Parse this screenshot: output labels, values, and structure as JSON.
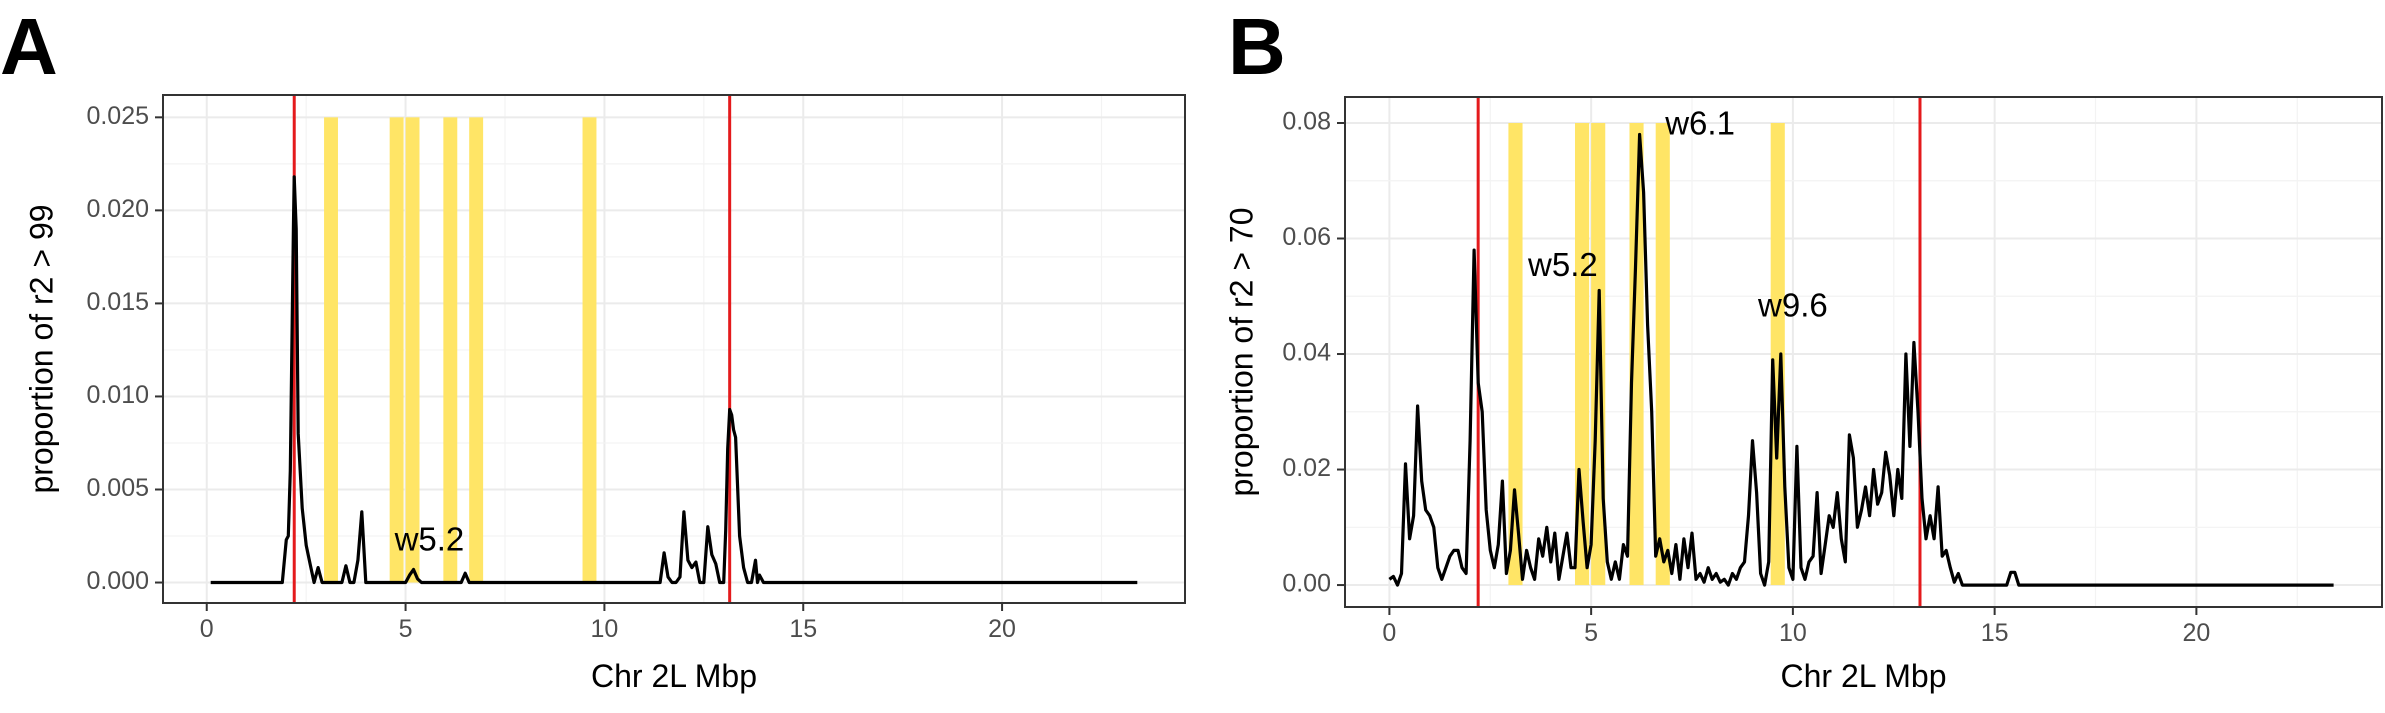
{
  "chart_data": [
    {
      "type": "line",
      "panel_label": "A",
      "xlabel": "Chr 2L Mbp",
      "ylabel": "proportion of r2 > 99",
      "xlim": [
        -1.1,
        24.6
      ],
      "ylim": [
        -0.0011,
        0.0262
      ],
      "xticks": [
        0,
        5,
        10,
        15,
        20
      ],
      "yticks": [
        0.0,
        0.005,
        0.01,
        0.015,
        0.02,
        0.025
      ],
      "ytick_labels": [
        "0.000",
        "0.005",
        "0.010",
        "0.015",
        "0.020",
        "0.025"
      ],
      "grid": true,
      "vlines": {
        "color": "#e41a1c",
        "x": [
          2.2,
          13.15
        ]
      },
      "highlight_bands": {
        "color": "#ffe566",
        "y_range": [
          0,
          0.025
        ],
        "x_ranges": [
          [
            2.95,
            3.3
          ],
          [
            4.6,
            4.95
          ],
          [
            5.0,
            5.35
          ],
          [
            5.95,
            6.3
          ],
          [
            6.6,
            6.95
          ],
          [
            9.45,
            9.8
          ]
        ]
      },
      "annotations": [
        {
          "text": "w5.2",
          "x": 5.6,
          "y": 0.0022
        }
      ],
      "series": [
        {
          "x": [
            0.1,
            1.9,
            2.0,
            2.05,
            2.1,
            2.15,
            2.18,
            2.2,
            2.25,
            2.3,
            2.4,
            2.5,
            2.6,
            2.7,
            2.8,
            2.9,
            3.0,
            3.2,
            3.4,
            3.5,
            3.6,
            3.7,
            3.8,
            3.9,
            4.0,
            4.1,
            4.5,
            5.0,
            5.1,
            5.2,
            5.3,
            5.4,
            6.2,
            6.4,
            6.5,
            6.6,
            6.8,
            11.4,
            11.5,
            11.6,
            11.7,
            11.8,
            11.9,
            12.0,
            12.1,
            12.2,
            12.3,
            12.4,
            12.5,
            12.6,
            12.7,
            12.8,
            12.9,
            12.95,
            13.0,
            13.05,
            13.1,
            13.15,
            13.2,
            13.25,
            13.3,
            13.4,
            13.5,
            13.6,
            13.7,
            13.8,
            13.85,
            13.9,
            14.0,
            23.4
          ],
          "y": [
            0.0,
            0.0,
            0.0023,
            0.0025,
            0.006,
            0.014,
            0.019,
            0.0218,
            0.019,
            0.008,
            0.004,
            0.002,
            0.001,
            0.0,
            0.0008,
            0.0,
            0.0,
            0.0,
            0.0,
            0.0009,
            0.0,
            0.0,
            0.0012,
            0.0038,
            0.0,
            0.0,
            0.0,
            0.0,
            0.0004,
            0.0007,
            0.0002,
            0.0,
            0.0,
            0.0,
            0.0005,
            0.0,
            0.0,
            0.0,
            0.0016,
            0.0003,
            0.0,
            0.0,
            0.0003,
            0.0038,
            0.0012,
            0.0008,
            0.0011,
            0.0,
            0.0,
            0.003,
            0.0015,
            0.001,
            0.0,
            0.0,
            0.0,
            0.0028,
            0.0072,
            0.0093,
            0.009,
            0.0082,
            0.0078,
            0.0025,
            0.0008,
            0.0,
            0.0,
            0.0012,
            0.0,
            0.0004,
            0.0,
            0.0
          ]
        }
      ]
    },
    {
      "type": "line",
      "panel_label": "B",
      "xlabel": "Chr 2L Mbp",
      "ylabel": "proportion of r2 > 70",
      "xlim": [
        -1.1,
        24.6
      ],
      "ylim": [
        -0.0038,
        0.0845
      ],
      "xticks": [
        0,
        5,
        10,
        15,
        20
      ],
      "yticks": [
        0.0,
        0.02,
        0.04,
        0.06,
        0.08
      ],
      "ytick_labels": [
        "0.00",
        "0.02",
        "0.04",
        "0.06",
        "0.08"
      ],
      "grid": true,
      "vlines": {
        "color": "#e41a1c",
        "x": [
          2.2,
          13.15
        ]
      },
      "highlight_bands": {
        "color": "#ffe566",
        "y_range": [
          0,
          0.08
        ],
        "x_ranges": [
          [
            2.95,
            3.3
          ],
          [
            4.6,
            4.95
          ],
          [
            5.0,
            5.35
          ],
          [
            5.95,
            6.3
          ],
          [
            6.6,
            6.95
          ],
          [
            9.45,
            9.8
          ]
        ]
      },
      "annotations": [
        {
          "text": "w5.2",
          "x": 4.3,
          "y": 0.055
        },
        {
          "text": "w6.1",
          "x": 7.7,
          "y": 0.0795
        },
        {
          "text": "w9.6",
          "x": 10.0,
          "y": 0.048
        }
      ],
      "series": [
        {
          "x": [
            0.0,
            0.1,
            0.2,
            0.3,
            0.4,
            0.5,
            0.6,
            0.7,
            0.8,
            0.9,
            1.0,
            1.1,
            1.2,
            1.3,
            1.4,
            1.5,
            1.6,
            1.7,
            1.8,
            1.9,
            2.0,
            2.1,
            2.2,
            2.3,
            2.4,
            2.5,
            2.6,
            2.7,
            2.8,
            2.9,
            3.0,
            3.1,
            3.2,
            3.3,
            3.4,
            3.5,
            3.6,
            3.7,
            3.8,
            3.9,
            4.0,
            4.1,
            4.2,
            4.3,
            4.4,
            4.5,
            4.6,
            4.7,
            4.8,
            4.9,
            5.0,
            5.1,
            5.2,
            5.3,
            5.4,
            5.5,
            5.6,
            5.7,
            5.8,
            5.9,
            6.0,
            6.1,
            6.2,
            6.3,
            6.4,
            6.5,
            6.6,
            6.7,
            6.8,
            6.9,
            7.0,
            7.1,
            7.2,
            7.3,
            7.4,
            7.5,
            7.6,
            7.7,
            7.8,
            7.9,
            8.0,
            8.1,
            8.2,
            8.3,
            8.4,
            8.5,
            8.6,
            8.7,
            8.8,
            8.9,
            9.0,
            9.1,
            9.2,
            9.3,
            9.4,
            9.5,
            9.6,
            9.7,
            9.8,
            9.9,
            10.0,
            10.1,
            10.2,
            10.3,
            10.4,
            10.5,
            10.6,
            10.7,
            10.8,
            10.9,
            11.0,
            11.1,
            11.2,
            11.3,
            11.4,
            11.5,
            11.6,
            11.7,
            11.8,
            11.9,
            12.0,
            12.1,
            12.2,
            12.3,
            12.4,
            12.5,
            12.6,
            12.7,
            12.8,
            12.9,
            13.0,
            13.1,
            13.2,
            13.3,
            13.4,
            13.5,
            13.6,
            13.7,
            13.8,
            13.9,
            14.0,
            14.1,
            14.2,
            14.3,
            14.4,
            14.8,
            15.0,
            15.2,
            15.3,
            15.4,
            15.5,
            15.6,
            16.0,
            23.4
          ],
          "y": [
            0.001,
            0.0015,
            0.0,
            0.002,
            0.021,
            0.008,
            0.012,
            0.031,
            0.018,
            0.013,
            0.012,
            0.01,
            0.003,
            0.001,
            0.003,
            0.005,
            0.006,
            0.006,
            0.003,
            0.002,
            0.025,
            0.058,
            0.035,
            0.03,
            0.013,
            0.006,
            0.003,
            0.007,
            0.018,
            0.002,
            0.006,
            0.0165,
            0.009,
            0.001,
            0.006,
            0.003,
            0.001,
            0.008,
            0.005,
            0.01,
            0.004,
            0.009,
            0.001,
            0.005,
            0.009,
            0.003,
            0.003,
            0.02,
            0.011,
            0.003,
            0.007,
            0.025,
            0.051,
            0.015,
            0.004,
            0.001,
            0.004,
            0.001,
            0.007,
            0.005,
            0.035,
            0.055,
            0.078,
            0.068,
            0.045,
            0.03,
            0.005,
            0.008,
            0.004,
            0.006,
            0.002,
            0.007,
            0.001,
            0.008,
            0.003,
            0.009,
            0.001,
            0.002,
            0.0005,
            0.003,
            0.001,
            0.002,
            0.0005,
            0.001,
            0.0,
            0.002,
            0.001,
            0.003,
            0.004,
            0.012,
            0.025,
            0.016,
            0.002,
            0.0,
            0.004,
            0.039,
            0.022,
            0.04,
            0.017,
            0.003,
            0.001,
            0.024,
            0.003,
            0.001,
            0.004,
            0.005,
            0.016,
            0.002,
            0.007,
            0.012,
            0.01,
            0.016,
            0.008,
            0.004,
            0.026,
            0.022,
            0.01,
            0.013,
            0.017,
            0.012,
            0.02,
            0.014,
            0.016,
            0.023,
            0.019,
            0.012,
            0.02,
            0.015,
            0.04,
            0.024,
            0.042,
            0.03,
            0.015,
            0.008,
            0.012,
            0.008,
            0.017,
            0.005,
            0.006,
            0.003,
            0.0005,
            0.002,
            0.0,
            0.0,
            0.0,
            0.0,
            0.0,
            0.0,
            0.0,
            0.0022,
            0.0022,
            0.0,
            0.0,
            0.0
          ]
        }
      ]
    }
  ]
}
